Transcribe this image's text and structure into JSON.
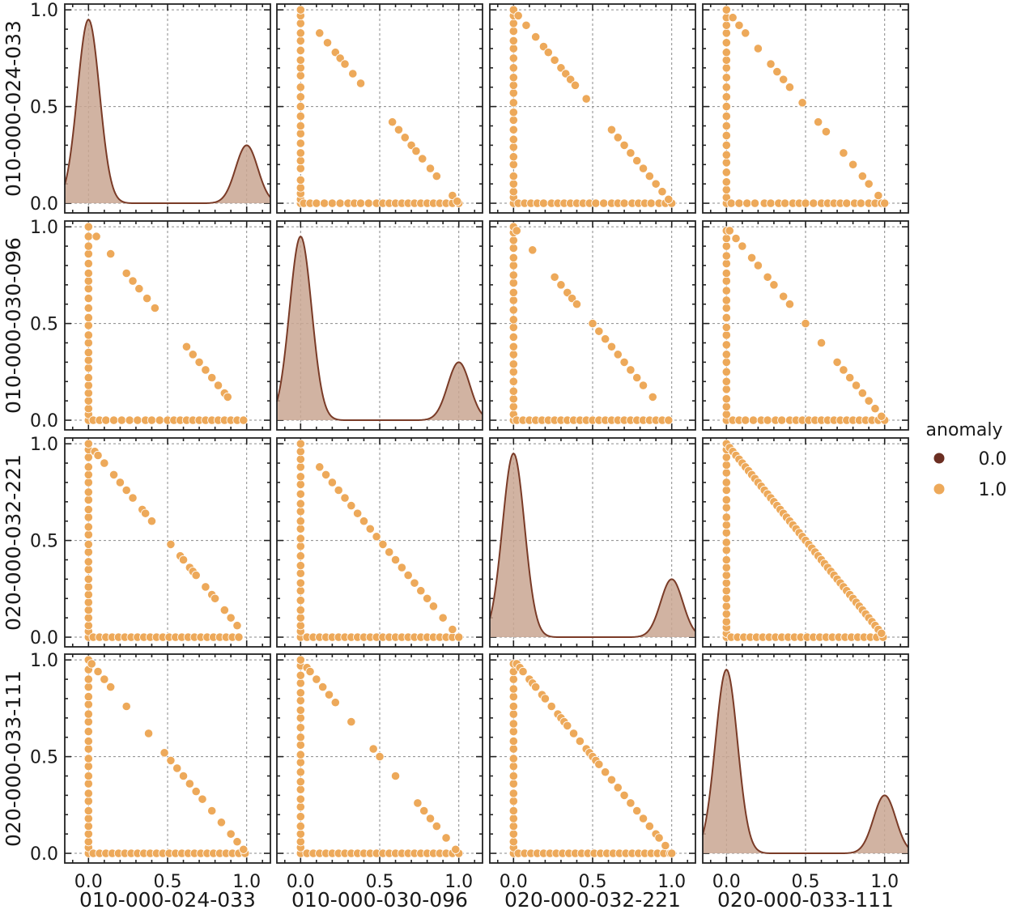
{
  "chart_data": {
    "type": "scatter",
    "kind": "pairplot",
    "variables": [
      "010-000-024-033",
      "010-000-030-096",
      "020-000-032-221",
      "020-000-033-111"
    ],
    "hue": {
      "title": "anomaly",
      "levels": [
        {
          "label": "0.0",
          "color": "#6b2e22"
        },
        {
          "label": "1.0",
          "color": "#eda95a"
        }
      ]
    },
    "diag": {
      "type": "kde",
      "fill": "#c9a692",
      "line": "#7a3b27",
      "peaks": [
        {
          "x": 0.0,
          "y": 0.95
        },
        {
          "x": 1.0,
          "y": 0.3
        }
      ]
    },
    "axes": {
      "xlim": [
        -0.15,
        1.15
      ],
      "ylim": [
        -0.05,
        1.03
      ],
      "xticks": [
        "0.0",
        "0.5",
        "1.0"
      ],
      "yticks": [
        "0.0",
        "0.5",
        "1.0"
      ],
      "grid": true
    },
    "offdiag": [
      {
        "row": 0,
        "col": 1,
        "vertical": [
          0.0,
          0.02,
          0.05,
          0.08,
          0.12,
          0.18,
          0.22,
          0.26,
          0.31,
          0.36,
          0.4,
          0.45,
          0.5,
          0.55,
          0.6,
          0.66,
          0.7,
          0.74,
          0.79,
          0.84,
          0.88,
          0.93,
          0.97,
          1.0
        ],
        "horizontal": [
          0.02,
          0.06,
          0.1,
          0.15,
          0.2,
          0.25,
          0.3,
          0.34,
          0.38,
          0.43,
          0.48,
          0.52,
          0.56,
          0.6,
          0.64,
          0.68,
          0.72,
          0.76,
          0.8,
          0.84,
          0.88,
          0.92,
          0.96,
          1.0
        ],
        "diagonal": [
          0.12,
          0.17,
          0.22,
          0.25,
          0.28,
          0.33,
          0.38,
          0.58,
          0.62,
          0.66,
          0.7,
          0.73,
          0.77,
          0.82,
          0.86,
          0.96,
          0.99
        ]
      },
      {
        "row": 0,
        "col": 2,
        "vertical": [
          0.0,
          0.03,
          0.06,
          0.1,
          0.14,
          0.2,
          0.24,
          0.29,
          0.33,
          0.38,
          0.43,
          0.47,
          0.52,
          0.57,
          0.61,
          0.65,
          0.7,
          0.75,
          0.8,
          0.84,
          0.89,
          0.93,
          0.97,
          1.0
        ],
        "horizontal": [
          0.03,
          0.07,
          0.11,
          0.15,
          0.19,
          0.24,
          0.28,
          0.32,
          0.36,
          0.4,
          0.44,
          0.48,
          0.52,
          0.57,
          0.62,
          0.66,
          0.7,
          0.75,
          0.79,
          0.83,
          0.87,
          0.92,
          0.96,
          1.0
        ],
        "diagonal": [
          0.03,
          0.08,
          0.14,
          0.19,
          0.22,
          0.26,
          0.3,
          0.33,
          0.36,
          0.39,
          0.46,
          0.62,
          0.66,
          0.7,
          0.74,
          0.78,
          0.82,
          0.86,
          0.9,
          0.94,
          0.98
        ]
      },
      {
        "row": 0,
        "col": 3,
        "vertical": [
          0.0,
          0.03,
          0.07,
          0.11,
          0.16,
          0.21,
          0.25,
          0.3,
          0.35,
          0.4,
          0.45,
          0.5,
          0.55,
          0.6,
          0.65,
          0.7,
          0.74,
          0.78,
          0.83,
          0.88,
          0.92,
          0.96,
          1.0
        ],
        "horizontal": [
          0.03,
          0.08,
          0.13,
          0.18,
          0.24,
          0.28,
          0.33,
          0.37,
          0.42,
          0.46,
          0.5,
          0.55,
          0.6,
          0.64,
          0.68,
          0.72,
          0.76,
          0.81,
          0.85,
          0.9,
          0.94,
          0.98
        ],
        "diagonal": [
          0.0,
          0.04,
          0.08,
          0.12,
          0.2,
          0.28,
          0.32,
          0.36,
          0.4,
          0.48,
          0.58,
          0.63,
          0.74,
          0.8,
          0.86,
          0.9,
          0.96,
          1.0
        ]
      },
      {
        "row": 1,
        "col": 0,
        "vertical": [
          0.0,
          0.03,
          0.06,
          0.1,
          0.14,
          0.18,
          0.22,
          0.27,
          0.31,
          0.35,
          0.4,
          0.44,
          0.49,
          0.53,
          0.58,
          0.63,
          0.68,
          0.72,
          0.76,
          0.81,
          0.86,
          0.9,
          0.95,
          1.0
        ],
        "horizontal": [
          0.03,
          0.07,
          0.11,
          0.16,
          0.21,
          0.26,
          0.31,
          0.36,
          0.4,
          0.45,
          0.5,
          0.54,
          0.58,
          0.62,
          0.66,
          0.7,
          0.74,
          0.78,
          0.82,
          0.86,
          0.9,
          0.94,
          0.98
        ],
        "diagonal": [
          0.0,
          0.05,
          0.14,
          0.24,
          0.28,
          0.32,
          0.37,
          0.42,
          0.62,
          0.66,
          0.7,
          0.74,
          0.78,
          0.82,
          0.86,
          0.88
        ]
      },
      {
        "row": 1,
        "col": 2,
        "vertical": [
          0.0,
          0.03,
          0.07,
          0.11,
          0.15,
          0.2,
          0.25,
          0.29,
          0.34,
          0.38,
          0.43,
          0.48,
          0.52,
          0.57,
          0.62,
          0.66,
          0.71,
          0.75,
          0.8,
          0.84,
          0.89,
          0.93,
          0.97,
          1.0
        ],
        "horizontal": [
          0.02,
          0.06,
          0.1,
          0.14,
          0.18,
          0.22,
          0.26,
          0.3,
          0.34,
          0.38,
          0.42,
          0.46,
          0.5,
          0.54,
          0.58,
          0.62,
          0.66,
          0.7,
          0.74,
          0.78,
          0.82,
          0.86,
          0.9,
          0.94,
          0.98
        ],
        "diagonal": [
          0.02,
          0.12,
          0.26,
          0.3,
          0.34,
          0.37,
          0.4,
          0.5,
          0.54,
          0.58,
          0.62,
          0.66,
          0.7,
          0.74,
          0.78,
          0.82,
          0.88
        ]
      },
      {
        "row": 1,
        "col": 3,
        "vertical": [
          0.0,
          0.03,
          0.07,
          0.11,
          0.16,
          0.2,
          0.25,
          0.3,
          0.34,
          0.39,
          0.44,
          0.48,
          0.53,
          0.58,
          0.62,
          0.67,
          0.72,
          0.76,
          0.81,
          0.85,
          0.9,
          0.94,
          0.98
        ],
        "horizontal": [
          0.04,
          0.08,
          0.12,
          0.17,
          0.22,
          0.26,
          0.31,
          0.35,
          0.4,
          0.44,
          0.48,
          0.52,
          0.56,
          0.6,
          0.64,
          0.68,
          0.72,
          0.76,
          0.8,
          0.84,
          0.88,
          0.92,
          0.96,
          1.0
        ],
        "diagonal": [
          0.02,
          0.06,
          0.1,
          0.16,
          0.2,
          0.26,
          0.3,
          0.36,
          0.4,
          0.5,
          0.6,
          0.7,
          0.74,
          0.78,
          0.82,
          0.86,
          0.9,
          0.94,
          0.98
        ]
      },
      {
        "row": 2,
        "col": 0,
        "vertical": [
          0.0,
          0.03,
          0.06,
          0.1,
          0.14,
          0.18,
          0.22,
          0.26,
          0.3,
          0.35,
          0.39,
          0.44,
          0.48,
          0.53,
          0.57,
          0.62,
          0.66,
          0.71,
          0.75,
          0.8,
          0.84,
          0.88,
          0.93,
          0.97,
          1.0
        ],
        "horizontal": [
          0.03,
          0.07,
          0.11,
          0.15,
          0.19,
          0.23,
          0.27,
          0.31,
          0.35,
          0.39,
          0.43,
          0.47,
          0.51,
          0.55,
          0.59,
          0.63,
          0.67,
          0.71,
          0.75,
          0.79,
          0.83,
          0.87,
          0.91,
          0.95
        ],
        "diagonal": [
          0.04,
          0.06,
          0.1,
          0.16,
          0.2,
          0.24,
          0.28,
          0.34,
          0.36,
          0.4,
          0.52,
          0.58,
          0.6,
          0.64,
          0.66,
          0.68,
          0.74,
          0.78,
          0.8,
          0.86,
          0.9,
          0.94
        ]
      },
      {
        "row": 2,
        "col": 1,
        "vertical": [
          0.0,
          0.03,
          0.06,
          0.1,
          0.14,
          0.19,
          0.24,
          0.28,
          0.33,
          0.37,
          0.42,
          0.47,
          0.51,
          0.56,
          0.6,
          0.65,
          0.69,
          0.74,
          0.79,
          0.83,
          0.88,
          0.92,
          0.96,
          1.0
        ],
        "horizontal": [
          0.04,
          0.08,
          0.12,
          0.16,
          0.2,
          0.24,
          0.28,
          0.32,
          0.36,
          0.4,
          0.44,
          0.48,
          0.52,
          0.56,
          0.6,
          0.64,
          0.68,
          0.72,
          0.76,
          0.8,
          0.84,
          0.88,
          0.92,
          0.96,
          1.0
        ],
        "diagonal": [
          0.12,
          0.16,
          0.2,
          0.24,
          0.28,
          0.32,
          0.36,
          0.4,
          0.44,
          0.48,
          0.52,
          0.56,
          0.6,
          0.64,
          0.68,
          0.72,
          0.76,
          0.8,
          0.84,
          0.9,
          0.96
        ]
      },
      {
        "row": 2,
        "col": 3,
        "vertical": [
          0.0,
          0.02,
          0.05,
          0.08,
          0.12,
          0.16,
          0.2,
          0.24,
          0.28,
          0.32,
          0.36,
          0.4,
          0.45,
          0.49,
          0.54,
          0.58,
          0.62,
          0.67,
          0.71,
          0.76,
          0.8,
          0.85,
          0.89,
          0.93,
          0.97,
          1.0
        ],
        "horizontal": [
          0.03,
          0.07,
          0.11,
          0.15,
          0.19,
          0.23,
          0.27,
          0.31,
          0.35,
          0.39,
          0.43,
          0.47,
          0.51,
          0.55,
          0.59,
          0.63,
          0.67,
          0.71,
          0.75,
          0.79,
          0.83,
          0.87,
          0.91,
          0.95,
          0.99
        ],
        "diagonal": [
          0.0,
          0.02,
          0.04,
          0.06,
          0.08,
          0.1,
          0.12,
          0.14,
          0.16,
          0.18,
          0.2,
          0.22,
          0.24,
          0.26,
          0.28,
          0.3,
          0.32,
          0.34,
          0.36,
          0.38,
          0.4,
          0.42,
          0.44,
          0.46,
          0.48,
          0.5,
          0.52,
          0.54,
          0.56,
          0.58,
          0.6,
          0.62,
          0.64,
          0.66,
          0.68,
          0.7,
          0.72,
          0.74,
          0.76,
          0.78,
          0.8,
          0.82,
          0.84,
          0.86,
          0.88,
          0.9,
          0.92,
          0.94,
          0.96,
          0.98
        ]
      },
      {
        "row": 3,
        "col": 0,
        "vertical": [
          0.0,
          0.03,
          0.06,
          0.1,
          0.14,
          0.18,
          0.22,
          0.27,
          0.31,
          0.36,
          0.4,
          0.45,
          0.49,
          0.54,
          0.58,
          0.63,
          0.68,
          0.72,
          0.77,
          0.81,
          0.86,
          0.9,
          0.95,
          1.0
        ],
        "horizontal": [
          0.03,
          0.07,
          0.11,
          0.15,
          0.19,
          0.23,
          0.27,
          0.31,
          0.35,
          0.39,
          0.43,
          0.47,
          0.51,
          0.55,
          0.59,
          0.63,
          0.67,
          0.71,
          0.75,
          0.79,
          0.83,
          0.87,
          0.91,
          0.95,
          0.99
        ],
        "diagonal": [
          0.02,
          0.06,
          0.1,
          0.14,
          0.24,
          0.38,
          0.48,
          0.52,
          0.56,
          0.6,
          0.64,
          0.68,
          0.72,
          0.78,
          0.84,
          0.9,
          0.94,
          0.98
        ]
      },
      {
        "row": 3,
        "col": 1,
        "vertical": [
          0.0,
          0.03,
          0.06,
          0.1,
          0.14,
          0.19,
          0.24,
          0.28,
          0.33,
          0.37,
          0.42,
          0.47,
          0.51,
          0.56,
          0.6,
          0.65,
          0.7,
          0.74,
          0.79,
          0.83,
          0.88,
          0.92,
          0.97,
          1.0
        ],
        "horizontal": [
          0.04,
          0.08,
          0.12,
          0.16,
          0.2,
          0.24,
          0.28,
          0.32,
          0.36,
          0.4,
          0.44,
          0.48,
          0.52,
          0.56,
          0.6,
          0.64,
          0.68,
          0.72,
          0.76,
          0.8,
          0.84,
          0.88,
          0.92,
          0.96,
          1.0
        ],
        "diagonal": [
          0.04,
          0.06,
          0.1,
          0.14,
          0.18,
          0.22,
          0.32,
          0.46,
          0.5,
          0.6,
          0.74,
          0.78,
          0.82,
          0.86,
          0.92,
          0.98
        ]
      },
      {
        "row": 3,
        "col": 2,
        "vertical": [
          0.0,
          0.03,
          0.06,
          0.1,
          0.14,
          0.18,
          0.22,
          0.27,
          0.31,
          0.36,
          0.4,
          0.45,
          0.49,
          0.54,
          0.58,
          0.63,
          0.67,
          0.72,
          0.76,
          0.81,
          0.85,
          0.9,
          0.94,
          0.98
        ],
        "horizontal": [
          0.03,
          0.07,
          0.11,
          0.15,
          0.19,
          0.23,
          0.27,
          0.31,
          0.35,
          0.39,
          0.43,
          0.47,
          0.51,
          0.55,
          0.59,
          0.63,
          0.67,
          0.71,
          0.75,
          0.79,
          0.83,
          0.87,
          0.91,
          0.95,
          0.99
        ],
        "diagonal": [
          0.02,
          0.04,
          0.06,
          0.1,
          0.12,
          0.14,
          0.18,
          0.2,
          0.24,
          0.28,
          0.3,
          0.32,
          0.34,
          0.38,
          0.42,
          0.46,
          0.48,
          0.5,
          0.52,
          0.54,
          0.58,
          0.62,
          0.66,
          0.7,
          0.74,
          0.78,
          0.82,
          0.86,
          0.9,
          0.92,
          0.96,
          1.0
        ]
      }
    ]
  }
}
